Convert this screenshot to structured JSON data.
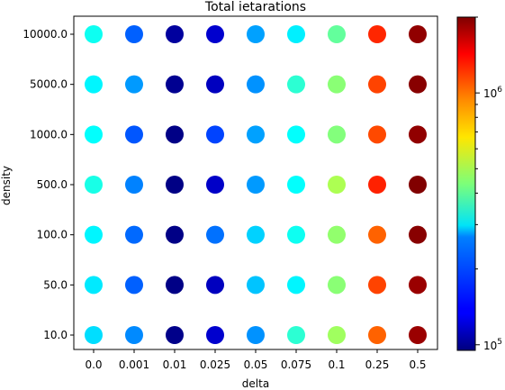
{
  "chart_data": {
    "type": "scatter",
    "title": "Total ietarations",
    "xlabel": "delta",
    "ylabel": "density",
    "x_categories": [
      "0.0",
      "0.001",
      "0.01",
      "0.025",
      "0.05",
      "0.075",
      "0.1",
      "0.25",
      "0.5"
    ],
    "y_categories": [
      "10.0",
      "50.0",
      "100.0",
      "500.0",
      "1000.0",
      "5000.0",
      "10000.0"
    ],
    "colorscale": {
      "name": "jet",
      "type": "log",
      "range": [
        95000,
        2000000
      ],
      "ticks": [
        {
          "value": 100000,
          "base": "10",
          "exp": "5"
        },
        {
          "value": 1000000,
          "base": "10",
          "exp": "6"
        }
      ]
    },
    "values": [
      [
        270000,
        280000,
        290000,
        320000,
        300000,
        290000,
        310000
      ],
      [
        210000,
        185000,
        190000,
        205000,
        180000,
        220000,
        185000
      ],
      [
        98000,
        97000,
        97000,
        96500,
        97000,
        100000,
        104000
      ],
      [
        120000,
        115000,
        195000,
        118000,
        170000,
        115000,
        120000
      ],
      [
        215000,
        250000,
        260000,
        220000,
        225000,
        215000,
        225000
      ],
      [
        340000,
        290000,
        310000,
        300000,
        300000,
        340000,
        285000
      ],
      [
        480000,
        450000,
        460000,
        500000,
        440000,
        450000,
        400000
      ],
      [
        1020000,
        1120000,
        1020000,
        1240000,
        1100000,
        1120000,
        1220000
      ],
      [
        1850000,
        1850000,
        1950000,
        1990000,
        1900000,
        1950000,
        1900000
      ]
    ]
  }
}
